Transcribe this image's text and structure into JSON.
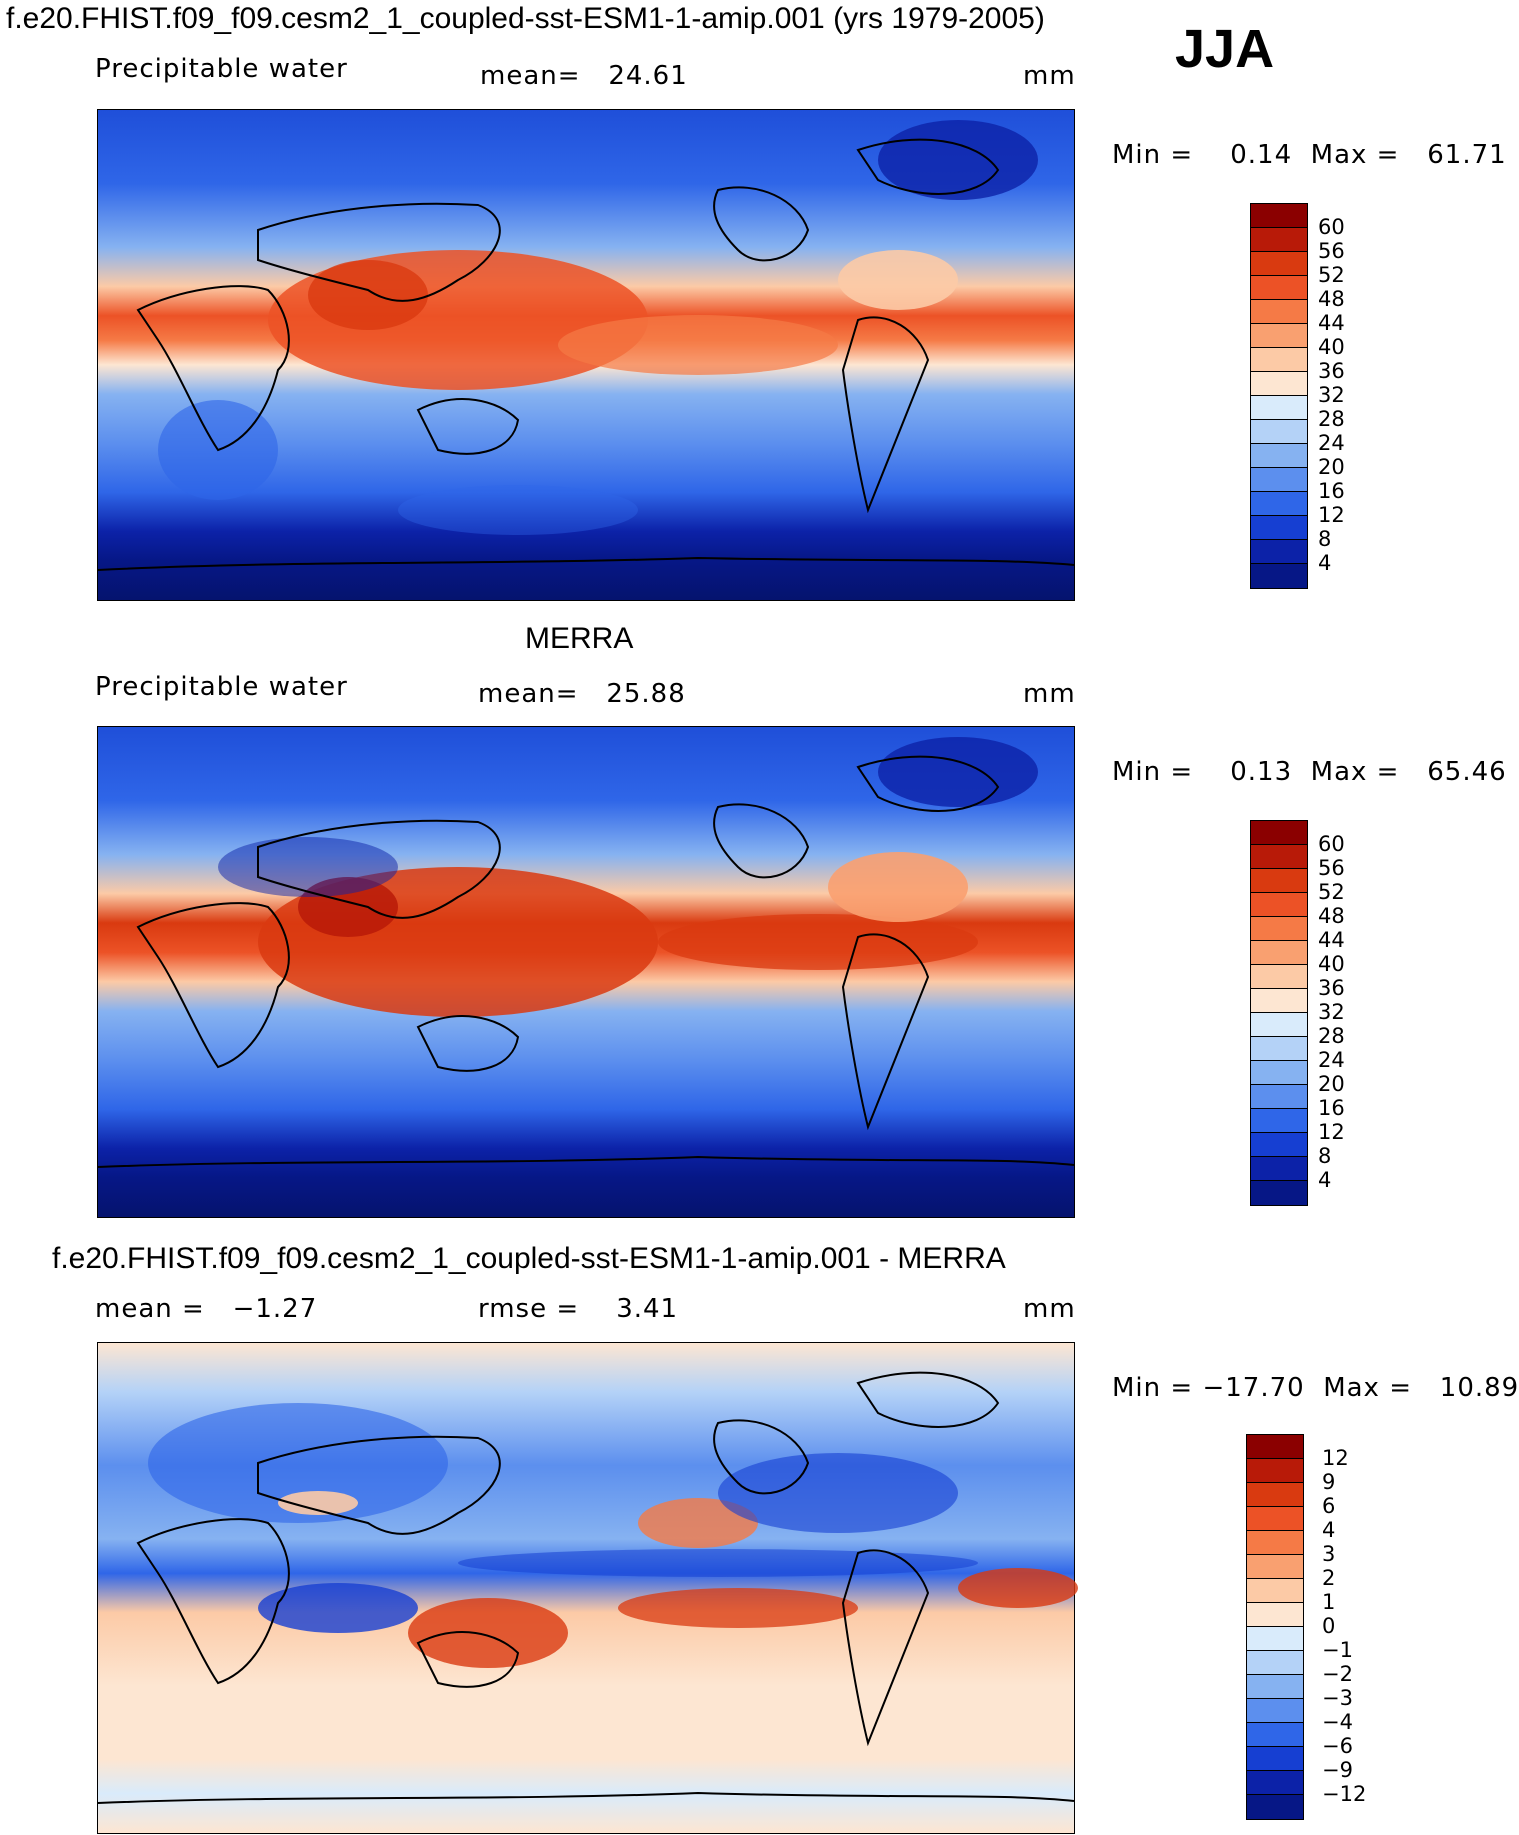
{
  "header": {
    "case_title": "f.e20.FHIST.f09_f09.cesm2_1_coupled-sst-ESM1-1-amip.001 (yrs 1979-2005)",
    "season": "JJA"
  },
  "panels": [
    {
      "id": "model",
      "title": "",
      "field": "Precipitable water",
      "stat_text": "mean=   24.61",
      "units": "mm",
      "minmax": "Min =    0.14  Max =   61.71",
      "colorbar": {
        "labels": [
          "60",
          "56",
          "52",
          "48",
          "44",
          "40",
          "36",
          "32",
          "28",
          "24",
          "20",
          "16",
          "12",
          "8",
          "4"
        ],
        "colors": [
          "#8b0000",
          "#b81a08",
          "#d93a10",
          "#ec5226",
          "#f57a46",
          "#f9a070",
          "#fccaa6",
          "#fde6d2",
          "#d9ebfb",
          "#b4d2f7",
          "#86b2f1",
          "#5c8fee",
          "#2f66e8",
          "#163fd2",
          "#0c22a8",
          "#061786"
        ]
      }
    },
    {
      "id": "obs",
      "title": "MERRA",
      "field": "Precipitable water",
      "stat_text": "mean=   25.88",
      "units": "mm",
      "minmax": "Min =    0.13  Max =   65.46",
      "colorbar": {
        "labels": [
          "60",
          "56",
          "52",
          "48",
          "44",
          "40",
          "36",
          "32",
          "28",
          "24",
          "20",
          "16",
          "12",
          "8",
          "4"
        ],
        "colors": [
          "#8b0000",
          "#b81a08",
          "#d93a10",
          "#ec5226",
          "#f57a46",
          "#f9a070",
          "#fccaa6",
          "#fde6d2",
          "#d9ebfb",
          "#b4d2f7",
          "#86b2f1",
          "#5c8fee",
          "#2f66e8",
          "#163fd2",
          "#0c22a8",
          "#061786"
        ]
      }
    },
    {
      "id": "diff",
      "title": "f.e20.FHIST.f09_f09.cesm2_1_coupled-sst-ESM1-1-amip.001 - MERRA",
      "field": "mean =   −1.27",
      "stat_text": "rmse =    3.41",
      "units": "mm",
      "minmax": "Min = −17.70  Max =   10.89",
      "colorbar": {
        "labels": [
          "12",
          "9",
          "6",
          "4",
          "3",
          "2",
          "1",
          "0",
          "−1",
          "−2",
          "−3",
          "−4",
          "−6",
          "−9",
          "−12"
        ],
        "colors": [
          "#8b0000",
          "#b81a08",
          "#d93a10",
          "#ec5226",
          "#f57a46",
          "#f9a070",
          "#fccaa6",
          "#fde6d2",
          "#d9ebfb",
          "#b4d2f7",
          "#86b2f1",
          "#5c8fee",
          "#2f66e8",
          "#163fd2",
          "#0c22a8",
          "#061786"
        ]
      }
    }
  ]
}
